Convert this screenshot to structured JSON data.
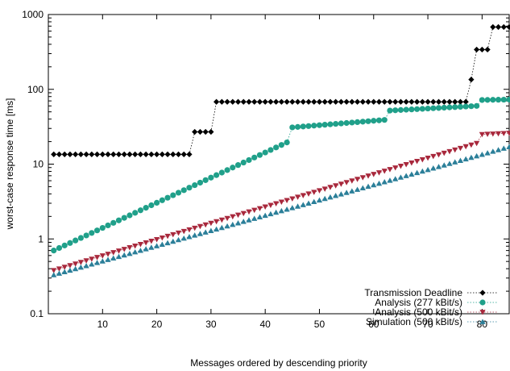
{
  "chart_data": {
    "type": "scatter",
    "title": "",
    "xlabel": "Messages ordered by descending priority",
    "ylabel": "worst-case response time [ms]",
    "xlim": [
      0,
      85
    ],
    "ylim": [
      0.1,
      1000
    ],
    "yscale": "log",
    "grid": false,
    "legend_position": "bottom-right",
    "x_ticks": [
      10,
      20,
      30,
      40,
      50,
      60,
      70,
      80
    ],
    "y_ticks": [
      0.1,
      1,
      10,
      100,
      1000
    ],
    "y_tick_labels": [
      "0.1",
      "1",
      "10",
      "100",
      "1000"
    ],
    "series": [
      {
        "name": "Transmission Deadline",
        "color": "#000000",
        "marker": "diamond",
        "segments": [
          {
            "x_from": 1,
            "x_to": 26,
            "y": 13.5
          },
          {
            "x_from": 27,
            "x_to": 30,
            "y": 27
          },
          {
            "x_from": 31,
            "x_to": 77,
            "y": 68
          },
          {
            "x_from": 78,
            "x_to": 78,
            "y": 135
          },
          {
            "x_from": 79,
            "x_to": 81,
            "y": 340
          },
          {
            "x_from": 82,
            "x_to": 85,
            "y": 680
          }
        ]
      },
      {
        "name": "Analysis (277 kBit/s)",
        "color": "#20a08a",
        "marker": "circle",
        "segments": [
          {
            "x_from": 1,
            "x_to": 44,
            "y_start": 0.7,
            "y_end": 19.5
          },
          {
            "x_from": 45,
            "x_to": 62,
            "y_start": 31,
            "y_end": 39
          },
          {
            "x_from": 63,
            "x_to": 79,
            "y_start": 52,
            "y_end": 60
          },
          {
            "x_from": 80,
            "x_to": 85,
            "y_start": 72,
            "y_end": 73
          }
        ]
      },
      {
        "name": "Analysis (500 kBit/s)",
        "color": "#a8283c",
        "marker": "triangle-down",
        "segments": [
          {
            "x_from": 1,
            "x_to": 79,
            "y_start": 0.38,
            "y_end": 19
          },
          {
            "x_from": 80,
            "x_to": 85,
            "y_start": 25,
            "y_end": 26
          }
        ]
      },
      {
        "name": "Simulation (500 kBit/s)",
        "color": "#2b7f99",
        "marker": "triangle-up",
        "segments": [
          {
            "x_from": 1,
            "x_to": 85,
            "y_start": 0.33,
            "y_end": 17
          }
        ]
      }
    ]
  }
}
